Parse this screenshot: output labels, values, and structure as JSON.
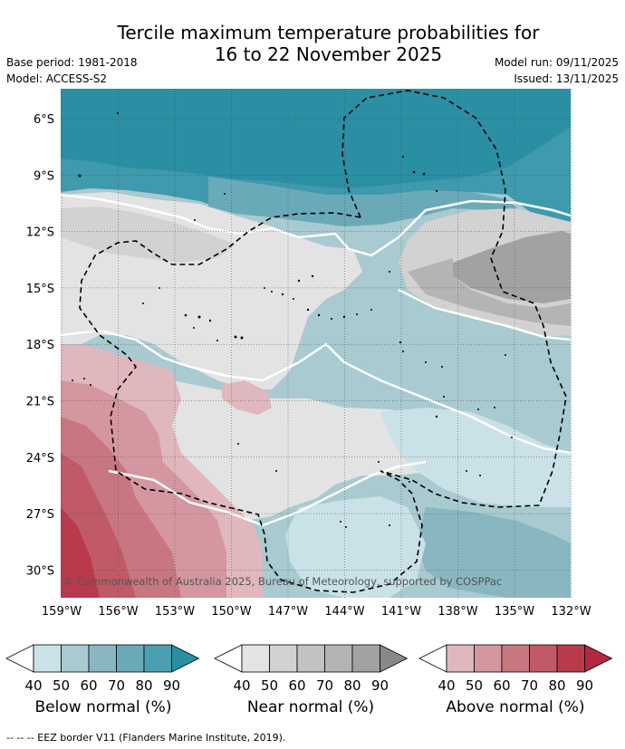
{
  "header": {
    "title_line1": "Tercile maximum temperature probabilities for",
    "title_line2": "16 to 22 November 2025",
    "base_period": "Base period: 1981-2018",
    "model": "Model: ACCESS-S2",
    "model_run": "Model run: 09/11/2025",
    "issued": "Issued: 13/11/2025"
  },
  "map": {
    "lat_labels": [
      "6°S",
      "9°S",
      "12°S",
      "15°S",
      "18°S",
      "21°S",
      "24°S",
      "27°S",
      "30°S"
    ],
    "lon_labels": [
      "159°W",
      "156°W",
      "153°W",
      "150°W",
      "147°W",
      "144°W",
      "141°W",
      "138°W",
      "135°W",
      "132°W"
    ],
    "copyright": "© Commonwealth of Australia 2025, Bureau of Meteorology, supported by COSPPac"
  },
  "colorbars": {
    "tick_labels": [
      "40",
      "50",
      "60",
      "70",
      "80",
      "90"
    ],
    "below": {
      "title": "Below normal (%)",
      "colors": [
        "#ffffff",
        "#c9e1e7",
        "#a8cad0",
        "#88b7c1",
        "#6aaab8",
        "#4aa0b2",
        "#2b8fa3"
      ]
    },
    "near": {
      "title": "Near normal (%)",
      "colors": [
        "#ffffff",
        "#e3e3e3",
        "#d2d2d2",
        "#c2c2c2",
        "#b4b4b4",
        "#a2a2a2",
        "#888888"
      ]
    },
    "above": {
      "title": "Above normal (%)",
      "colors": [
        "#ffffff",
        "#e0b7bd",
        "#d4979f",
        "#c87781",
        "#c05a67",
        "#b93a4c",
        "#b22842"
      ]
    }
  },
  "footer": {
    "eez_legend": "-- -- -- EEZ border V11 (Flanders Marine Institute, 2019)."
  }
}
